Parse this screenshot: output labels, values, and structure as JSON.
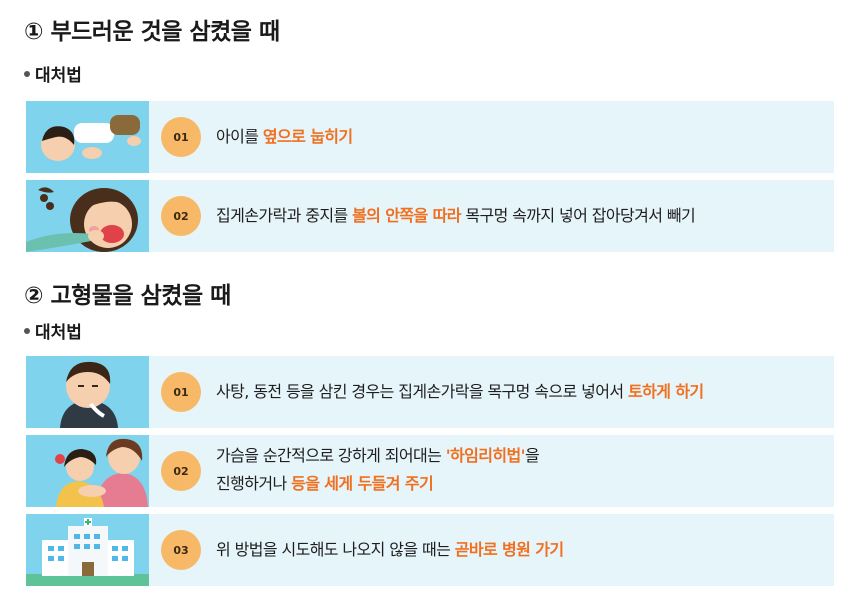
{
  "section1": {
    "title": "① 부드러운 것을 삼켰을 때",
    "subtitle": "대처법",
    "items": [
      {
        "num": "01",
        "pre": "아이를 ",
        "hl": "옆으로 눕히기",
        "post": ""
      },
      {
        "num": "02",
        "pre": "집게손가락과 중지를 ",
        "hl": "볼의 안쪽을 따라",
        "post": " 목구멍 속까지 넣어 잡아당겨서 빼기"
      }
    ]
  },
  "section2": {
    "title": "② 고형물을 삼켰을 때",
    "subtitle": "대처법",
    "items": [
      {
        "num": "01",
        "pre": "사탕, 동전 등을 삼킨 경우는 집게손가락을 목구멍 속으로 넣어서 ",
        "hl": "토하게 하기",
        "post": ""
      },
      {
        "num": "02",
        "pre": "가슴을 순간적으로 강하게 죄어대는 ",
        "hl": "'하임리히법'",
        "post": "을",
        "line2_pre": "진행하거나 ",
        "line2_hl": "등을 세게 두들겨 주기"
      },
      {
        "num": "03",
        "pre": "위 방법을 시도해도 나오지 않을 때는 ",
        "hl": "곧바로 병원 가기",
        "post": ""
      }
    ]
  },
  "colors": {
    "card_bg": "#e6f5fa",
    "thumb_bg": "#7fd3ec",
    "badge": "#f7b967",
    "highlight": "#f07020"
  }
}
